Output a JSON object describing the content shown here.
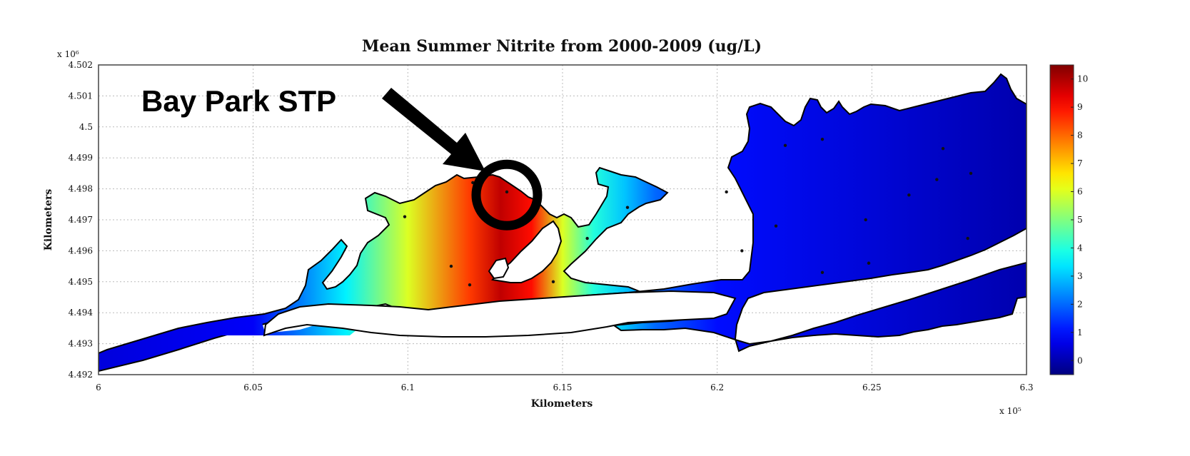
{
  "chart_data": {
    "type": "heatmap",
    "title": "Mean Summer Nitrite from 2000-2009 (ug/L)",
    "xlabel": "Kilometers",
    "ylabel": "Kilometers",
    "x_multiplier": "x 10⁵",
    "y_multiplier": "x 10⁶",
    "xlim": [
      6.0,
      6.3
    ],
    "ylim": [
      4.492,
      4.502
    ],
    "x_ticks": [
      "6",
      "6.05",
      "6.1",
      "6.15",
      "6.2",
      "6.25",
      "6.3"
    ],
    "y_ticks": [
      "4.492",
      "4.493",
      "4.494",
      "4.495",
      "4.496",
      "4.497",
      "4.498",
      "4.499",
      "4.5",
      "4.501",
      "4.502"
    ],
    "grid": true,
    "colorbar": {
      "min": -0.5,
      "max": 10.5,
      "ticks": [
        "0",
        "1",
        "2",
        "3",
        "4",
        "5",
        "6",
        "7",
        "8",
        "9",
        "10"
      ],
      "colormap": "jet"
    },
    "concentration_profile": {
      "x": [
        6.0,
        6.05,
        6.08,
        6.1,
        6.12,
        6.13,
        6.14,
        6.15,
        6.16,
        6.17,
        6.18,
        6.2,
        6.3
      ],
      "value": [
        0.5,
        0.8,
        3.5,
        6,
        8.5,
        9.8,
        9,
        6,
        4,
        3,
        2,
        1,
        0
      ]
    },
    "stations": [
      {
        "x": 6.099,
        "y": 4.4971
      },
      {
        "x": 6.114,
        "y": 4.4955
      },
      {
        "x": 6.12,
        "y": 4.4949
      },
      {
        "x": 6.121,
        "y": 4.4982
      },
      {
        "x": 6.132,
        "y": 4.4979
      },
      {
        "x": 6.147,
        "y": 4.495
      },
      {
        "x": 6.158,
        "y": 4.4964
      },
      {
        "x": 6.171,
        "y": 4.4974
      },
      {
        "x": 6.203,
        "y": 4.4979
      },
      {
        "x": 6.208,
        "y": 4.496
      },
      {
        "x": 6.219,
        "y": 4.4968
      },
      {
        "x": 6.222,
        "y": 4.4994
      },
      {
        "x": 6.234,
        "y": 4.4996
      },
      {
        "x": 6.234,
        "y": 4.4953
      },
      {
        "x": 6.248,
        "y": 4.497
      },
      {
        "x": 6.249,
        "y": 4.4956
      },
      {
        "x": 6.262,
        "y": 4.4978
      },
      {
        "x": 6.271,
        "y": 4.4983
      },
      {
        "x": 6.273,
        "y": 4.4993
      },
      {
        "x": 6.281,
        "y": 4.4964
      },
      {
        "x": 6.282,
        "y": 4.4985
      }
    ],
    "annotations": [
      {
        "text": "Bay Park STP",
        "target_x": 6.132,
        "target_y": 4.4978
      }
    ],
    "colors": {
      "background": "#ffffff",
      "land": "#ffffff",
      "arrow": "#000000",
      "grid": "#bbbbbb"
    }
  }
}
